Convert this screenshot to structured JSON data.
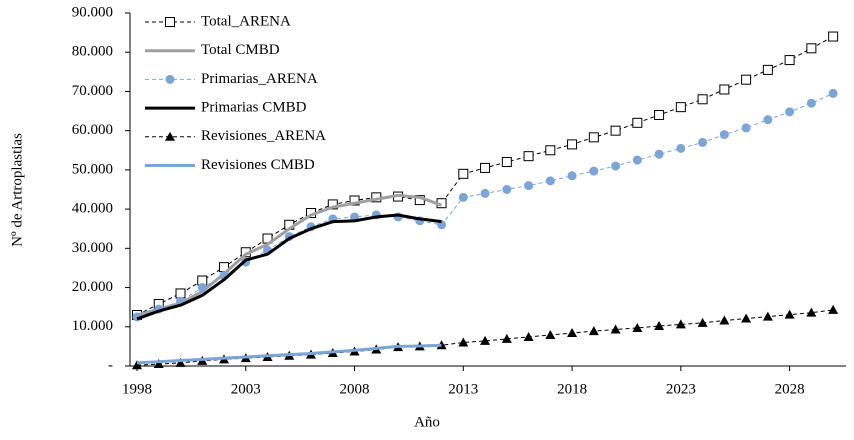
{
  "chart_data": {
    "type": "line",
    "x_label": "Año",
    "y_label": "Nº de Artroplastias",
    "x": [
      1998,
      1999,
      2000,
      2001,
      2002,
      2003,
      2004,
      2005,
      2006,
      2007,
      2008,
      2009,
      2010,
      2011,
      2012,
      2013,
      2014,
      2015,
      2016,
      2017,
      2018,
      2019,
      2020,
      2021,
      2022,
      2023,
      2024,
      2025,
      2026,
      2027,
      2028,
      2029,
      2030
    ],
    "xlim": [
      1998,
      2030.5
    ],
    "xticks": [
      1998,
      2003,
      2008,
      2013,
      2018,
      2023,
      2028
    ],
    "ylim": [
      0,
      90000
    ],
    "yticks": [
      {
        "value": 0,
        "label": "-"
      },
      {
        "value": 10000,
        "label": "10.000"
      },
      {
        "value": 20000,
        "label": "20.000"
      },
      {
        "value": 30000,
        "label": "30.000"
      },
      {
        "value": 40000,
        "label": "40.000"
      },
      {
        "value": 50000,
        "label": "50.000"
      },
      {
        "value": 60000,
        "label": "60.000"
      },
      {
        "value": 70000,
        "label": "70.000"
      },
      {
        "value": 80000,
        "label": "80.000"
      },
      {
        "value": 90000,
        "label": "90.000"
      }
    ],
    "legend": "upper left",
    "series": [
      {
        "name": "Total_ARENA",
        "color": "#000000",
        "dash": true,
        "marker": "square",
        "width": 1,
        "values": [
          13000,
          15800,
          18500,
          21800,
          25200,
          29000,
          32500,
          36000,
          39000,
          41200,
          42200,
          43000,
          43200,
          42300,
          41500,
          49000,
          50500,
          52000,
          53500,
          55000,
          56500,
          58300,
          60000,
          62000,
          64000,
          66000,
          68000,
          70500,
          73000,
          75500,
          78000,
          81000,
          84000
        ]
      },
      {
        "name": "Total CMBD",
        "color": "#a0a0a0",
        "dash": false,
        "marker": "none",
        "width": 3,
        "values": [
          13000,
          14500,
          16000,
          19000,
          23500,
          28500,
          31000,
          35000,
          38500,
          40500,
          41500,
          42500,
          43500,
          43000,
          41000,
          null,
          null,
          null,
          null,
          null,
          null,
          null,
          null,
          null,
          null,
          null,
          null,
          null,
          null,
          null,
          null,
          null,
          null
        ]
      },
      {
        "name": "Primarias_ARENA",
        "color": "#7aa5d6",
        "dash": true,
        "marker": "circle",
        "width": 1,
        "values": [
          12500,
          14500,
          16500,
          20000,
          23000,
          26500,
          29500,
          33000,
          35500,
          37500,
          38000,
          38500,
          38000,
          37000,
          36000,
          43000,
          44000,
          45000,
          46000,
          47200,
          48500,
          49700,
          51000,
          52500,
          54000,
          55500,
          57000,
          59000,
          60700,
          62800,
          64800,
          67000,
          69500
        ]
      },
      {
        "name": "Primarias CMBD",
        "color": "#000000",
        "dash": false,
        "marker": "none",
        "width": 3,
        "values": [
          12000,
          14000,
          15500,
          18000,
          22000,
          27000,
          28500,
          32500,
          35000,
          36800,
          37000,
          38000,
          38500,
          37500,
          36800,
          null,
          null,
          null,
          null,
          null,
          null,
          null,
          null,
          null,
          null,
          null,
          null,
          null,
          null,
          null,
          null,
          null,
          null
        ]
      },
      {
        "name": "Revisiones_ARENA",
        "color": "#000000",
        "dash": true,
        "marker": "triangle",
        "width": 1,
        "values": [
          200,
          500,
          800,
          1300,
          1700,
          2000,
          2300,
          2600,
          2900,
          3300,
          3700,
          4200,
          4800,
          5000,
          5300,
          6000,
          6400,
          6900,
          7400,
          7900,
          8400,
          8900,
          9300,
          9700,
          10200,
          10600,
          11000,
          11600,
          12100,
          12600,
          13100,
          13600,
          14300
        ]
      },
      {
        "name": "Revisiones CMBD",
        "color": "#7aa5d6",
        "dash": false,
        "marker": "none",
        "width": 3,
        "values": [
          800,
          1100,
          1400,
          1700,
          2000,
          2300,
          2600,
          2900,
          3200,
          3600,
          4000,
          4500,
          5000,
          5100,
          5300,
          null,
          null,
          null,
          null,
          null,
          null,
          null,
          null,
          null,
          null,
          null,
          null,
          null,
          null,
          null,
          null,
          null,
          null
        ]
      }
    ]
  }
}
